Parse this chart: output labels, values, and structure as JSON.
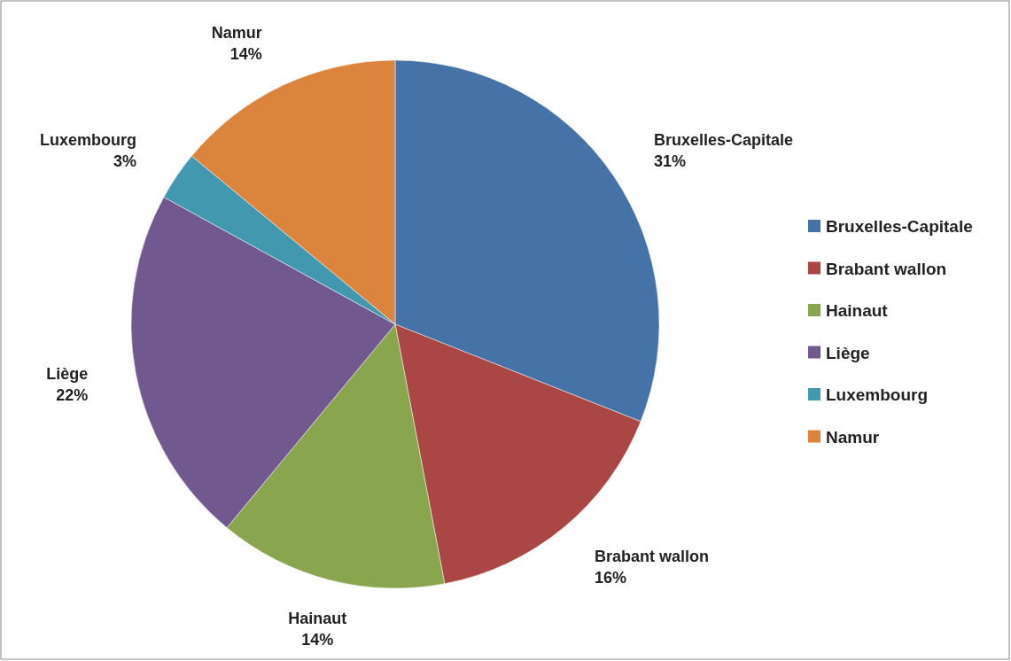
{
  "chart_data": {
    "type": "pie",
    "categories": [
      "Bruxelles-Capitale",
      "Brabant wallon",
      "Hainaut",
      "Liège",
      "Luxembourg",
      "Namur"
    ],
    "values": [
      31,
      16,
      14,
      22,
      3,
      14
    ],
    "colors": [
      "#4572a7",
      "#aa4643",
      "#89a54e",
      "#71588f",
      "#4198af",
      "#db843d"
    ],
    "value_labels": [
      "31%",
      "16%",
      "14%",
      "22%",
      "3%",
      "14%"
    ],
    "legend": "right"
  }
}
